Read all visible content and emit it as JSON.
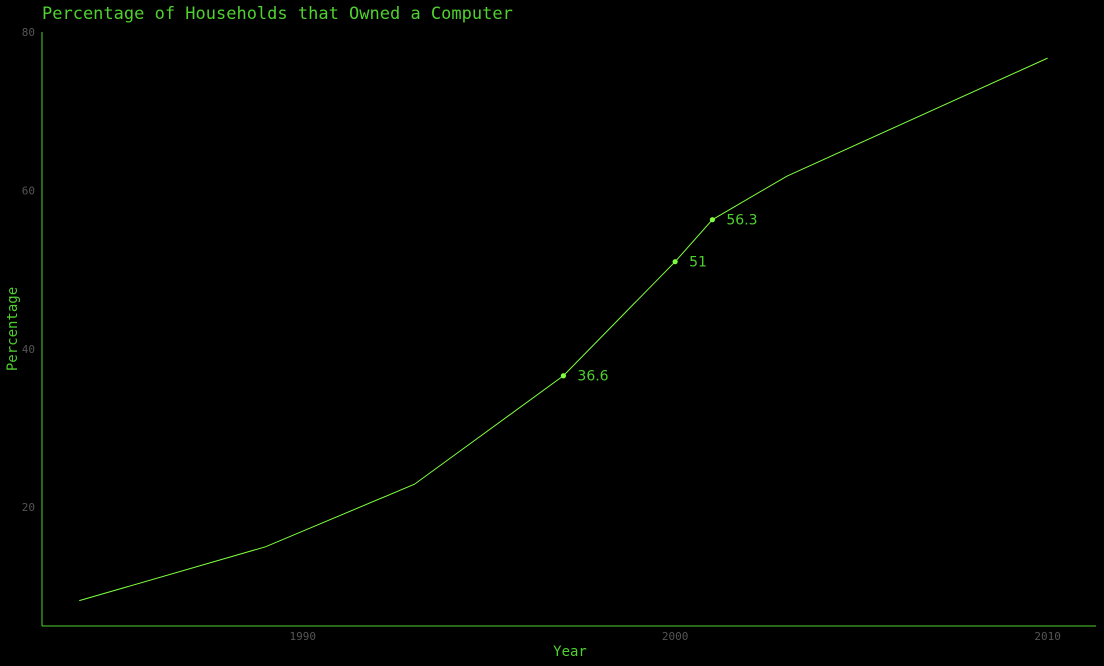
{
  "chart_data": {
    "type": "line",
    "title": "Percentage of Households that Owned a Computer",
    "xlabel": "Year",
    "ylabel": "Percentage",
    "xlim": [
      1983,
      2011.3
    ],
    "ylim": [
      5,
      80
    ],
    "x_ticks": [
      1990,
      2000,
      2010
    ],
    "y_ticks": [
      20,
      40,
      60,
      80
    ],
    "grid": false,
    "legend": "none",
    "colors": {
      "line": "#7fff3f",
      "axis": "#4fd12f",
      "text": "#4fd12f",
      "tick": "#555555",
      "background": "#000000"
    },
    "series": [
      {
        "x": [
          1984,
          1989,
          1993,
          1997,
          2000,
          2001,
          2003,
          2010
        ],
        "values": [
          8.2,
          15.0,
          22.9,
          36.6,
          51.0,
          56.3,
          61.8,
          76.7
        ]
      }
    ],
    "annotations": [
      {
        "x": 1997,
        "y": 36.6,
        "label": "36.6"
      },
      {
        "x": 2000,
        "y": 51.0,
        "label": "51"
      },
      {
        "x": 2001,
        "y": 56.3,
        "label": "56.3"
      }
    ]
  }
}
